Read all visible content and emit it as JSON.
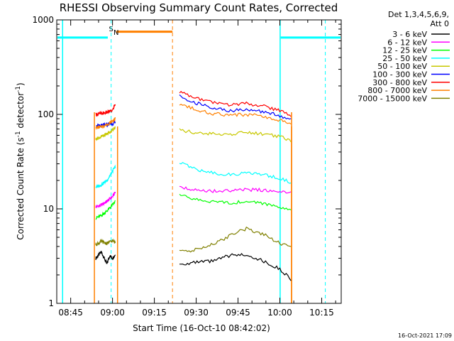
{
  "chart_data": {
    "type": "line",
    "title": "RHESSI Observing Summary Count Rates, Corrected",
    "xlabel": "Start Time (16-Oct-10 08:42:02)",
    "ylabel": "Corrected Count Rate (s",
    "ylabel_sup1": "-1",
    "ylabel_mid": " detector",
    "ylabel_sup2": "-1",
    "ylabel_end": ")",
    "y_scale": "log",
    "ylim": [
      1,
      1000
    ],
    "xlim": [
      "08:40",
      "10:22"
    ],
    "x_ticks": [
      "08:45",
      "09:00",
      "09:15",
      "09:30",
      "09:45",
      "10:00",
      "10:15"
    ],
    "y_ticks": [
      "1",
      "10",
      "100",
      "1000"
    ],
    "legend_title": "Det 1,3,4,5,6,9,",
    "legend_subtitle": "Att 0",
    "legend_position": "right",
    "date_stamp": "16-Oct-2021 17:09",
    "markers": {
      "saa_label": "S",
      "night_label": "N"
    },
    "series": [
      {
        "name": "3 - 6 keV",
        "color": "#000000",
        "segments": [
          {
            "x": [
              "08:54",
              "08:56",
              "08:58",
              "08:59",
              "09:00",
              "09:01"
            ],
            "y": [
              3,
              3.5,
              2.6,
              3.2,
              3,
              3.3
            ]
          },
          {
            "x": [
              "09:24",
              "09:30",
              "09:36",
              "09:42",
              "09:48",
              "09:54",
              "10:00",
              "10:04"
            ],
            "y": [
              2.6,
              2.7,
              2.8,
              3.2,
              3.3,
              2.8,
              2.3,
              1.8
            ]
          }
        ]
      },
      {
        "name": "6 - 12 keV",
        "color": "#ff00ff",
        "segments": [
          {
            "x": [
              "08:54",
              "08:56",
              "08:58",
              "09:00",
              "09:01"
            ],
            "y": [
              10.5,
              11,
              12,
              13.5,
              15
            ]
          },
          {
            "x": [
              "09:24",
              "09:30",
              "09:36",
              "09:42",
              "09:48",
              "09:54",
              "10:00",
              "10:04"
            ],
            "y": [
              17,
              16,
              15.5,
              15.5,
              16,
              15.8,
              15.5,
              15
            ]
          }
        ]
      },
      {
        "name": "12 - 25 keV",
        "color": "#00ff00",
        "segments": [
          {
            "x": [
              "08:54",
              "08:56",
              "08:58",
              "09:00",
              "09:01"
            ],
            "y": [
              8,
              8.5,
              9.5,
              11,
              12
            ]
          },
          {
            "x": [
              "09:24",
              "09:30",
              "09:36",
              "09:42",
              "09:48",
              "09:54",
              "10:00",
              "10:04"
            ],
            "y": [
              14,
              12.5,
              12,
              11.5,
              12,
              11.5,
              10.5,
              9.5
            ]
          }
        ]
      },
      {
        "name": "25 - 50 keV",
        "color": "#00ffff",
        "segments": [
          {
            "x": [
              "08:54",
              "08:56",
              "08:58",
              "09:00",
              "09:01"
            ],
            "y": [
              17,
              18,
              20,
              25,
              28
            ]
          },
          {
            "x": [
              "09:24",
              "09:30",
              "09:36",
              "09:42",
              "09:48",
              "09:54",
              "10:00",
              "10:04"
            ],
            "y": [
              31,
              26,
              24,
              23,
              24,
              23,
              21,
              19
            ]
          }
        ]
      },
      {
        "name": "50 - 100 keV",
        "color": "#c8c800",
        "segments": [
          {
            "x": [
              "08:54",
              "08:56",
              "08:58",
              "09:00",
              "09:01"
            ],
            "y": [
              55,
              58,
              62,
              68,
              72
            ]
          },
          {
            "x": [
              "09:24",
              "09:30",
              "09:36",
              "09:42",
              "09:48",
              "09:54",
              "10:00",
              "10:04"
            ],
            "y": [
              68,
              64,
              62,
              62,
              64,
              62,
              58,
              53
            ]
          }
        ]
      },
      {
        "name": "100 - 300 keV",
        "color": "#0000ff",
        "segments": [
          {
            "x": [
              "08:54",
              "08:56",
              "08:58",
              "09:00",
              "09:01"
            ],
            "y": [
              75,
              76,
              78,
              80,
              82
            ]
          },
          {
            "x": [
              "09:24",
              "09:30",
              "09:36",
              "09:42",
              "09:48",
              "09:54",
              "10:00",
              "10:04"
            ],
            "y": [
              155,
              132,
              118,
              110,
              112,
              107,
              97,
              88
            ]
          }
        ]
      },
      {
        "name": "300 - 800 keV",
        "color": "#ff0000",
        "segments": [
          {
            "x": [
              "08:54",
              "08:56",
              "08:58",
              "09:00",
              "09:01"
            ],
            "y": [
              100,
              102,
              105,
              110,
              130
            ]
          },
          {
            "x": [
              "09:24",
              "09:30",
              "09:36",
              "09:42",
              "09:48",
              "09:54",
              "10:00",
              "10:04"
            ],
            "y": [
              175,
              148,
              133,
              126,
              130,
              122,
              110,
              98
            ]
          }
        ]
      },
      {
        "name": "800 - 7000 keV",
        "color": "#ff8000",
        "segments": [
          {
            "x": [
              "08:54",
              "08:56",
              "08:58",
              "09:00",
              "09:01"
            ],
            "y": [
              72,
              74,
              78,
              85,
              90
            ]
          },
          {
            "x": [
              "09:24",
              "09:30",
              "09:36",
              "09:42",
              "09:48",
              "09:54",
              "10:00",
              "10:04"
            ],
            "y": [
              130,
              112,
              102,
              97,
              100,
              95,
              87,
              78
            ]
          }
        ]
      },
      {
        "name": "7000 - 15000 keV",
        "color": "#808000",
        "segments": [
          {
            "x": [
              "08:54",
              "08:56",
              "08:58",
              "09:00",
              "09:01"
            ],
            "y": [
              4.2,
              4.5,
              4.3,
              4.6,
              4.4
            ]
          },
          {
            "x": [
              "09:24",
              "09:30",
              "09:36",
              "09:42",
              "09:48",
              "09:54",
              "10:00",
              "10:04"
            ],
            "y": [
              3.5,
              3.7,
              4.2,
              5.2,
              6.2,
              5.4,
              4.3,
              3.9
            ]
          }
        ]
      }
    ]
  }
}
